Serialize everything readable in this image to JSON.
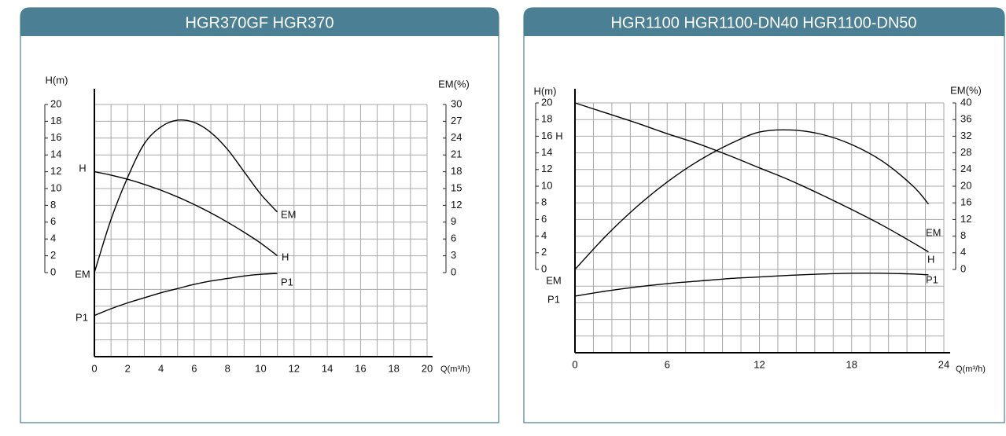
{
  "chart_data": [
    {
      "type": "line",
      "title": "HGR370GF HGR370",
      "x_label": "Q(m³/h)",
      "y_label": "H(m)",
      "y2_label": "EM(%)",
      "x": [
        0,
        1,
        2,
        3,
        4,
        5,
        6,
        7,
        8,
        9,
        10,
        11
      ],
      "xlim": [
        0,
        20
      ],
      "xticks": [
        0,
        2,
        4,
        6,
        8,
        10,
        12,
        14,
        16,
        18,
        20
      ],
      "ylim": [
        -10,
        20
      ],
      "yticks": [
        0,
        2,
        4,
        6,
        8,
        10,
        12,
        14,
        16,
        18,
        20
      ],
      "y2lim": [
        -15,
        30
      ],
      "y2ticks": [
        0,
        3,
        6,
        9,
        12,
        15,
        18,
        21,
        24,
        27,
        30
      ],
      "grid": true,
      "series": [
        {
          "name": "H",
          "color": "#000000",
          "values": [
            12,
            11.6,
            11.1,
            10.5,
            9.8,
            9.0,
            8.1,
            7.1,
            6.0,
            4.8,
            3.5,
            2.0
          ]
        },
        {
          "name": "EM",
          "color": "#000000",
          "axis": "y2",
          "values": [
            0,
            9.5,
            17,
            23,
            26,
            27.2,
            26.8,
            25,
            22,
            18,
            14,
            10.8
          ]
        },
        {
          "name": "P1",
          "color": "#000000",
          "values": [
            -5.1,
            -4.3,
            -3.6,
            -3.0,
            -2.4,
            -1.9,
            -1.4,
            -1.0,
            -0.7,
            -0.4,
            -0.2,
            -0.1
          ]
        }
      ]
    },
    {
      "type": "line",
      "title": "HGR1100 HGR1100-DN40 HGR1100-DN50",
      "x_label": "Q(m³/h)",
      "y_label": "H(m)",
      "y2_label": "EM(%)",
      "x": [
        0,
        2,
        4,
        6,
        8,
        10,
        12,
        14,
        16,
        18,
        20,
        22,
        23
      ],
      "xlim": [
        0,
        24
      ],
      "xticks": [
        0,
        6,
        12,
        18,
        24
      ],
      "ylim": [
        -10,
        20
      ],
      "yticks": [
        0,
        2,
        4,
        6,
        8,
        10,
        12,
        14,
        16,
        18,
        20
      ],
      "y2lim": [
        -20,
        40
      ],
      "y2ticks": [
        0,
        4,
        8,
        12,
        16,
        20,
        24,
        28,
        32,
        36,
        40
      ],
      "grid": true,
      "series": [
        {
          "name": "H",
          "color": "#000000",
          "values": [
            20,
            18.8,
            17.6,
            16.3,
            15.1,
            13.7,
            12.2,
            10.7,
            9.0,
            7.2,
            5.3,
            3.2,
            2.1
          ]
        },
        {
          "name": "EM",
          "color": "#000000",
          "axis": "y2",
          "values": [
            0,
            8,
            15,
            21,
            26,
            30,
            33,
            33.5,
            32.5,
            30,
            26,
            20,
            15.7
          ]
        },
        {
          "name": "P1",
          "color": "#000000",
          "values": [
            -3.2,
            -2.6,
            -2.1,
            -1.7,
            -1.4,
            -1.1,
            -0.9,
            -0.7,
            -0.55,
            -0.45,
            -0.45,
            -0.55,
            -0.65
          ]
        }
      ]
    }
  ]
}
